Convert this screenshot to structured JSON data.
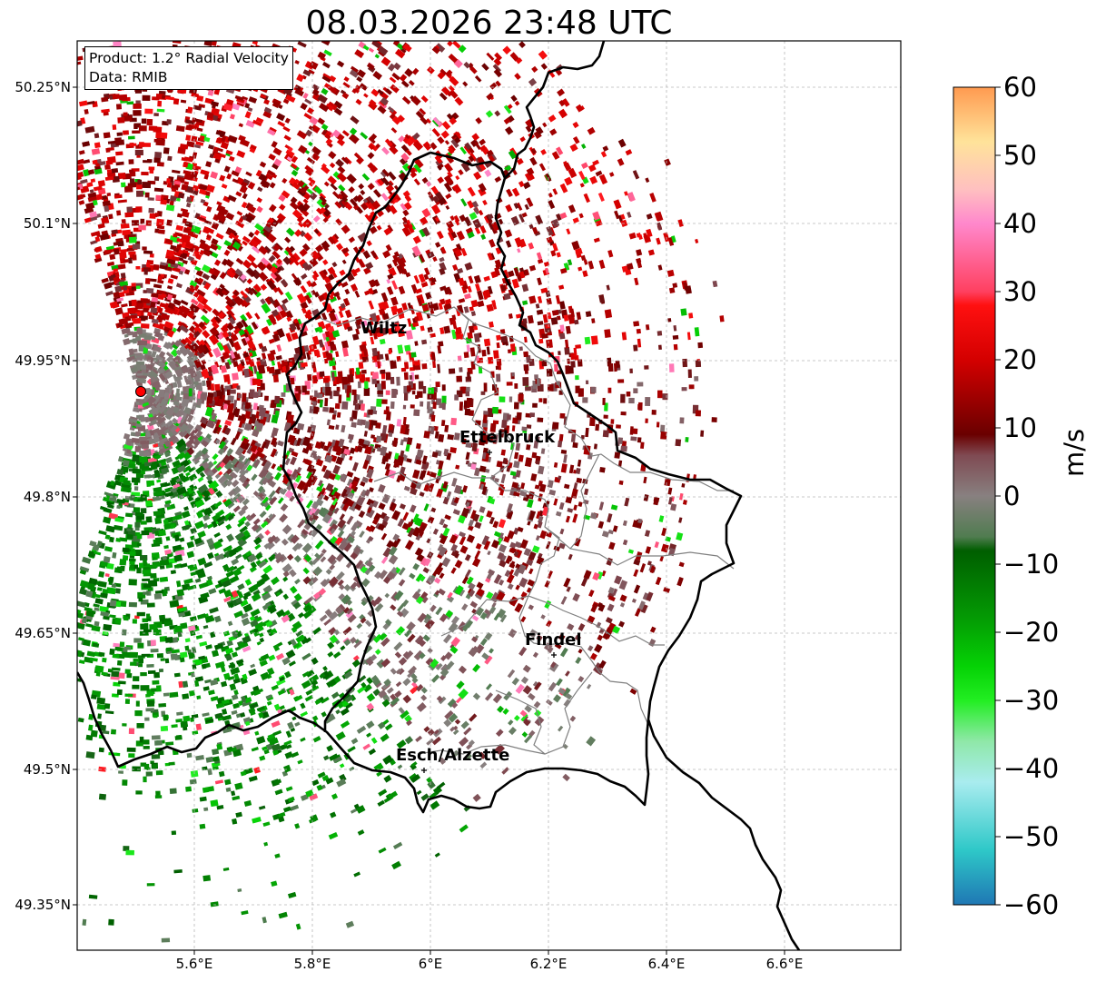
{
  "title": "08.03.2026 23:48 UTC",
  "info": {
    "product": "Product: 1.2° Radial Velocity",
    "data": "Data: RMIB"
  },
  "lat_ticks": [
    "50.25°N",
    "50.1°N",
    "49.95°N",
    "49.8°N",
    "49.65°N",
    "49.5°N",
    "49.35°N"
  ],
  "lon_ticks": [
    "5.6°E",
    "5.8°E",
    "6°E",
    "6.2°E",
    "6.4°E",
    "6.6°E"
  ],
  "cities": [
    "Wiltz",
    "Ettelbruck",
    "Findel",
    "Esch/Alzette"
  ],
  "colorbar": {
    "unit": "m/s",
    "ticks": [
      "60",
      "50",
      "40",
      "30",
      "20",
      "10",
      "0",
      "−10",
      "−20",
      "−30",
      "−40",
      "−50",
      "−60"
    ],
    "range": [
      -60,
      60
    ],
    "stops": [
      {
        "v": -60,
        "c": "#1f77b4"
      },
      {
        "v": -52,
        "c": "#2ec8c8"
      },
      {
        "v": -42,
        "c": "#a9ecef"
      },
      {
        "v": -36,
        "c": "#8fe8a8"
      },
      {
        "v": -30,
        "c": "#22ee22"
      },
      {
        "v": -25,
        "c": "#05d205"
      },
      {
        "v": -18,
        "c": "#049b04"
      },
      {
        "v": -8,
        "c": "#005e00"
      },
      {
        "v": -6,
        "c": "#507c50"
      },
      {
        "v": 0,
        "c": "#888080"
      },
      {
        "v": 6,
        "c": "#7f4a52"
      },
      {
        "v": 9,
        "c": "#6a0000"
      },
      {
        "v": 20,
        "c": "#d40000"
      },
      {
        "v": 28,
        "c": "#ff1010"
      },
      {
        "v": 30,
        "c": "#ff4060"
      },
      {
        "v": 40,
        "c": "#ff88cc"
      },
      {
        "v": 45,
        "c": "#ffc0c0"
      },
      {
        "v": 52,
        "c": "#ffe39a"
      },
      {
        "v": 60,
        "c": "#ff9a50"
      }
    ]
  },
  "colors": {
    "border": "#000000",
    "admin": "#808080",
    "radar_site": "#ff0000"
  }
}
